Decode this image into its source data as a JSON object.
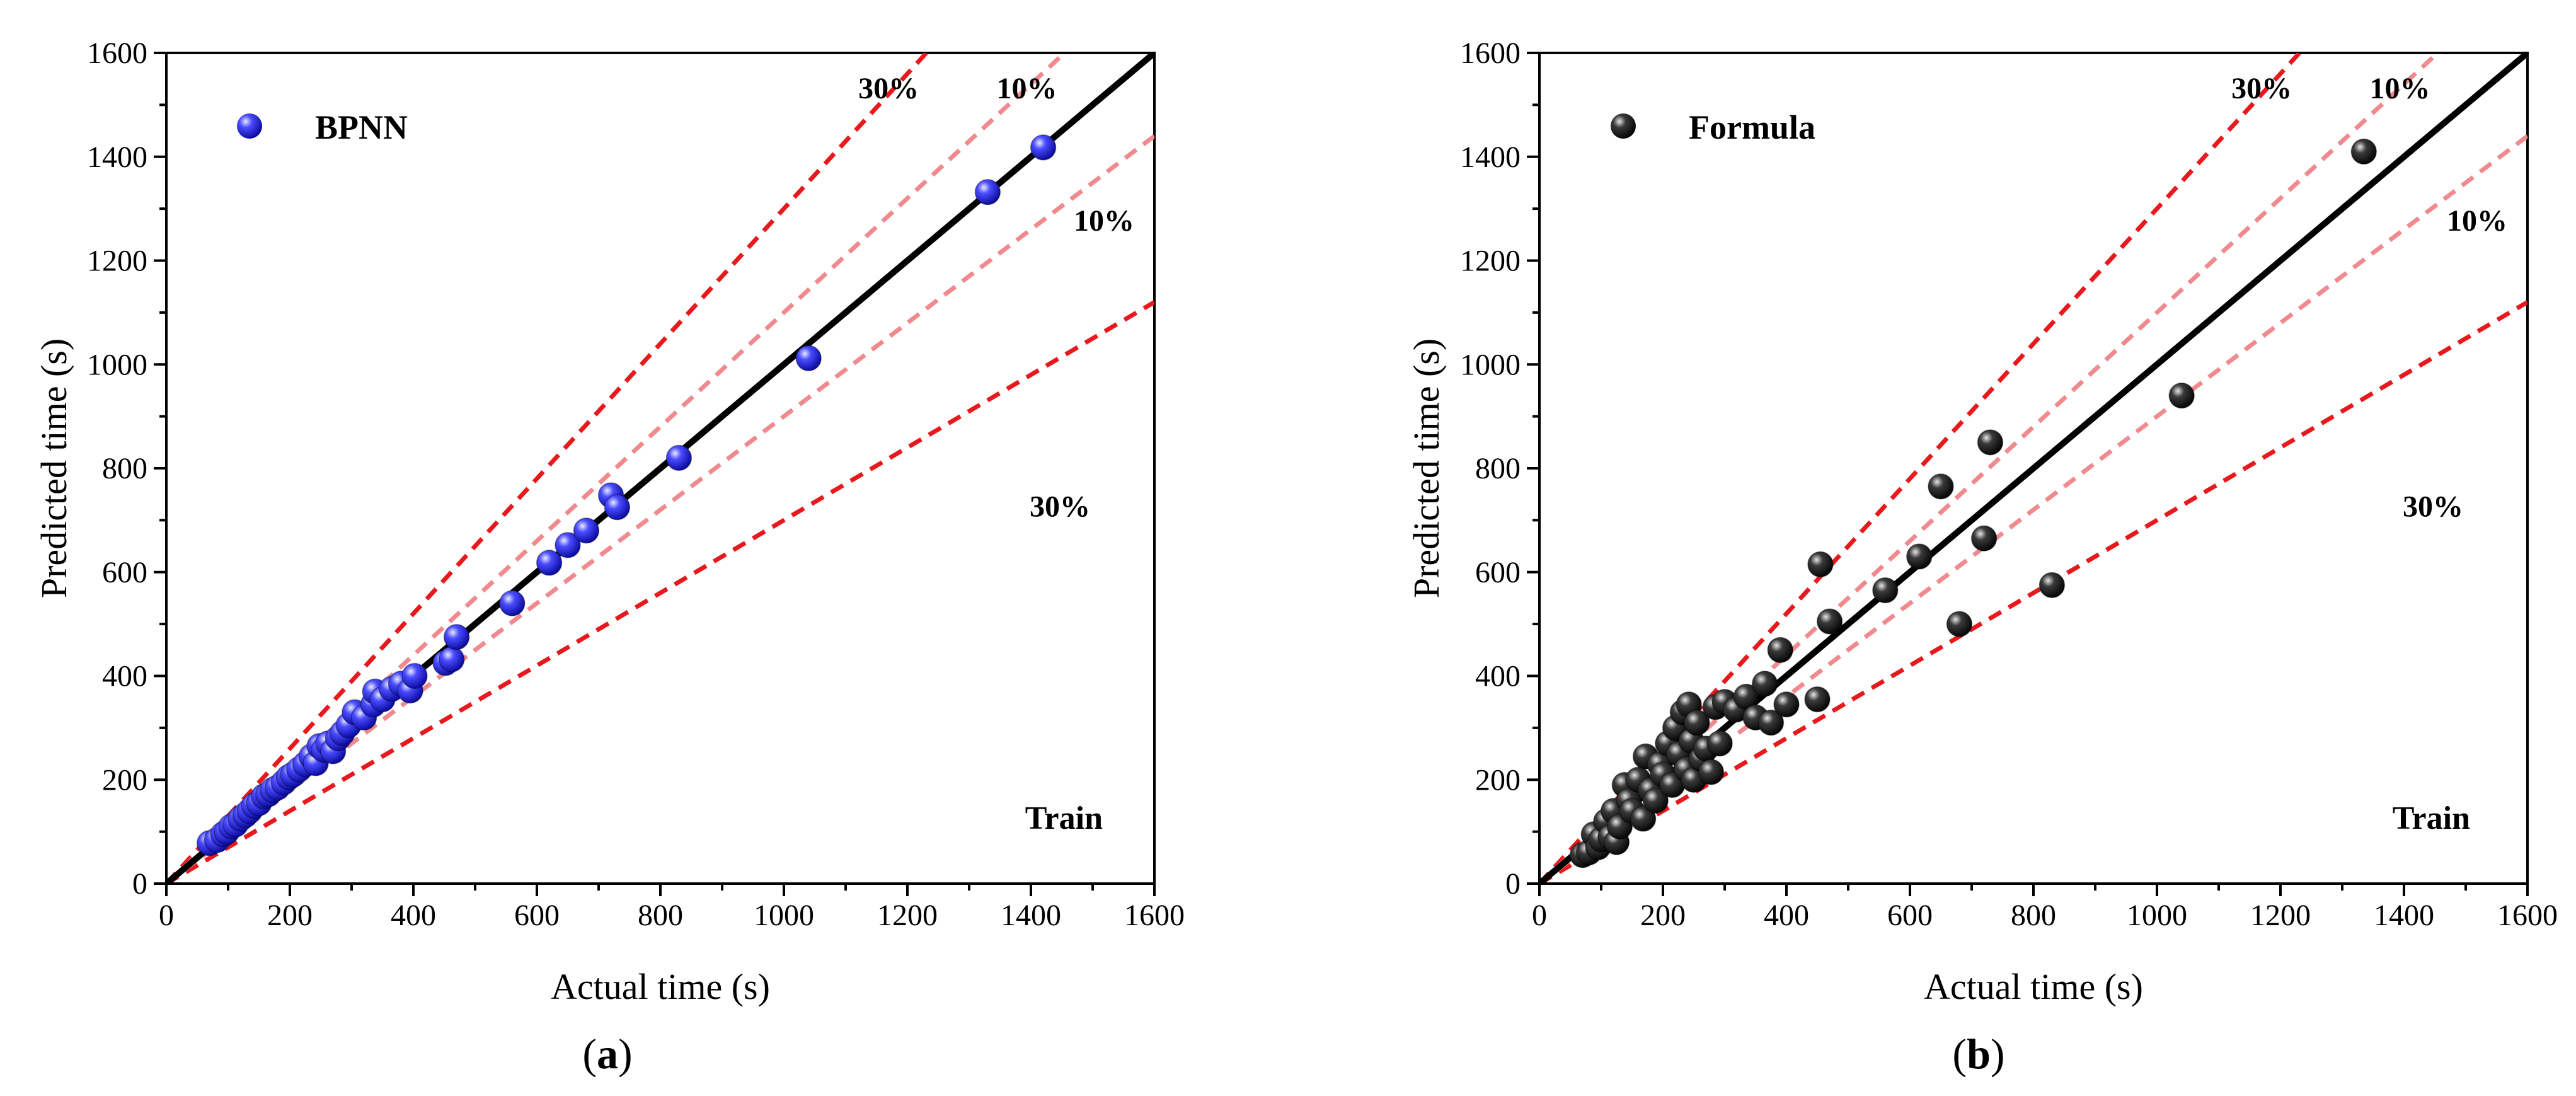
{
  "chart_data": [
    {
      "type": "scatter",
      "panel_label": "a",
      "xlabel": "Actual time (s)",
      "ylabel": "Predicted time (s)",
      "xlim": [
        0,
        1600
      ],
      "ylim": [
        0,
        1600
      ],
      "xticks": [
        0,
        200,
        400,
        600,
        800,
        1000,
        1200,
        1400,
        1600
      ],
      "yticks": [
        0,
        200,
        400,
        600,
        800,
        1000,
        1200,
        1400,
        1600
      ],
      "legend": {
        "label": "BPNN",
        "position": "top-left"
      },
      "corner_text": "Train",
      "reference_lines": [
        {
          "slope": 1.0,
          "label": "",
          "style": "solid-black"
        },
        {
          "slope": 1.1,
          "label": "10%",
          "style": "dashed-pink"
        },
        {
          "slope": 0.9,
          "label": "10%",
          "style": "dashed-pink"
        },
        {
          "slope": 1.3,
          "label": "30%",
          "style": "dashed-red"
        },
        {
          "slope": 0.7,
          "label": "30%",
          "style": "dashed-red"
        }
      ],
      "series": [
        {
          "name": "BPNN",
          "color": "#1f1fe6",
          "points": [
            [
              70,
              78
            ],
            [
              82,
              84
            ],
            [
              92,
              95
            ],
            [
              98,
              100
            ],
            [
              105,
              110
            ],
            [
              112,
              114
            ],
            [
              120,
              125
            ],
            [
              128,
              132
            ],
            [
              135,
              140
            ],
            [
              142,
              150
            ],
            [
              150,
              155
            ],
            [
              158,
              168
            ],
            [
              165,
              172
            ],
            [
              172,
              180
            ],
            [
              180,
              185
            ],
            [
              190,
              195
            ],
            [
              198,
              205
            ],
            [
              205,
              210
            ],
            [
              215,
              220
            ],
            [
              225,
              230
            ],
            [
              235,
              245
            ],
            [
              242,
              232
            ],
            [
              248,
              265
            ],
            [
              255,
              258
            ],
            [
              262,
              270
            ],
            [
              270,
              255
            ],
            [
              278,
              280
            ],
            [
              285,
              290
            ],
            [
              295,
              305
            ],
            [
              305,
              330
            ],
            [
              320,
              320
            ],
            [
              335,
              345
            ],
            [
              338,
              370
            ],
            [
              350,
              355
            ],
            [
              365,
              375
            ],
            [
              380,
              385
            ],
            [
              395,
              372
            ],
            [
              402,
              400
            ],
            [
              452,
              425
            ],
            [
              462,
              432
            ],
            [
              470,
              475
            ],
            [
              560,
              540
            ],
            [
              620,
              618
            ],
            [
              650,
              652
            ],
            [
              680,
              680
            ],
            [
              720,
              748
            ],
            [
              730,
              725
            ],
            [
              830,
              820
            ],
            [
              1040,
              1012
            ],
            [
              1330,
              1332
            ],
            [
              1420,
              1418
            ]
          ]
        }
      ]
    },
    {
      "type": "scatter",
      "panel_label": "b",
      "xlabel": "Actual time (s)",
      "ylabel": "Predicted time (s)",
      "xlim": [
        0,
        1600
      ],
      "ylim": [
        0,
        1600
      ],
      "xticks": [
        0,
        200,
        400,
        600,
        800,
        1000,
        1200,
        1400,
        1600
      ],
      "yticks": [
        0,
        200,
        400,
        600,
        800,
        1000,
        1200,
        1400,
        1600
      ],
      "legend": {
        "label": "Formula",
        "position": "top-left"
      },
      "corner_text": "Train",
      "reference_lines": [
        {
          "slope": 1.0,
          "label": "",
          "style": "solid-black"
        },
        {
          "slope": 1.1,
          "label": "10%",
          "style": "dashed-pink"
        },
        {
          "slope": 0.9,
          "label": "10%",
          "style": "dashed-pink"
        },
        {
          "slope": 1.3,
          "label": "30%",
          "style": "dashed-red"
        },
        {
          "slope": 0.7,
          "label": "30%",
          "style": "dashed-red"
        }
      ],
      "series": [
        {
          "name": "Formula",
          "color": "#222222",
          "points": [
            [
              70,
              55
            ],
            [
              80,
              60
            ],
            [
              88,
              95
            ],
            [
              95,
              70
            ],
            [
              100,
              85
            ],
            [
              108,
              120
            ],
            [
              115,
              90
            ],
            [
              120,
              140
            ],
            [
              125,
              80
            ],
            [
              130,
              110
            ],
            [
              138,
              190
            ],
            [
              145,
              160
            ],
            [
              150,
              140
            ],
            [
              160,
              200
            ],
            [
              168,
              125
            ],
            [
              172,
              245
            ],
            [
              180,
              180
            ],
            [
              188,
              160
            ],
            [
              195,
              230
            ],
            [
              200,
              210
            ],
            [
              208,
              270
            ],
            [
              215,
              190
            ],
            [
              220,
              300
            ],
            [
              226,
              250
            ],
            [
              232,
              330
            ],
            [
              238,
              220
            ],
            [
              242,
              345
            ],
            [
              246,
              275
            ],
            [
              250,
              200
            ],
            [
              255,
              310
            ],
            [
              262,
              240
            ],
            [
              270,
              260
            ],
            [
              278,
              215
            ],
            [
              285,
              340
            ],
            [
              292,
              270
            ],
            [
              300,
              350
            ],
            [
              318,
              335
            ],
            [
              335,
              360
            ],
            [
              350,
              320
            ],
            [
              365,
              385
            ],
            [
              375,
              310
            ],
            [
              390,
              450
            ],
            [
              400,
              345
            ],
            [
              450,
              355
            ],
            [
              455,
              615
            ],
            [
              470,
              505
            ],
            [
              560,
              565
            ],
            [
              615,
              630
            ],
            [
              650,
              765
            ],
            [
              680,
              500
            ],
            [
              720,
              665
            ],
            [
              730,
              850
            ],
            [
              830,
              575
            ],
            [
              1040,
              940
            ],
            [
              1335,
              1410
            ]
          ]
        }
      ]
    }
  ],
  "colors": {
    "red_dashed": "#e8191d",
    "pink_dashed": "#f08a8e",
    "identity": "#000000",
    "bpnn_marker": "#1f1fe6",
    "formula_marker": "#222222"
  }
}
